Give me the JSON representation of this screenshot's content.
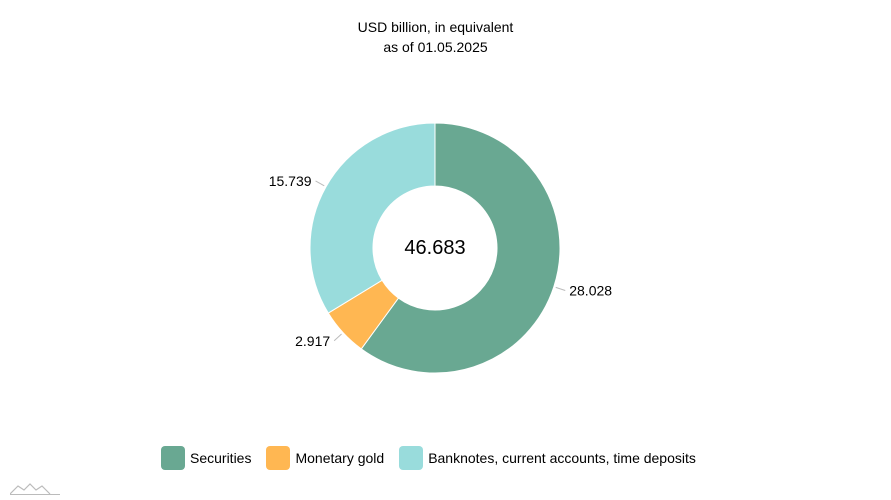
{
  "chart_data": {
    "type": "pie",
    "title": "USD billion, in equivalent",
    "subtitle": "as of 01.05.2025",
    "total_label": "46.683",
    "slices": [
      {
        "name": "Securities",
        "value": 28.028,
        "label": "28.028",
        "color": "#69a892"
      },
      {
        "name": "Monetary gold",
        "value": 2.917,
        "label": "2.917",
        "color": "#ffb752"
      },
      {
        "name": "Banknotes, current accounts, time deposits",
        "value": 15.739,
        "label": "15.739",
        "color": "#99dcdc"
      }
    ],
    "legend_position": "bottom"
  }
}
